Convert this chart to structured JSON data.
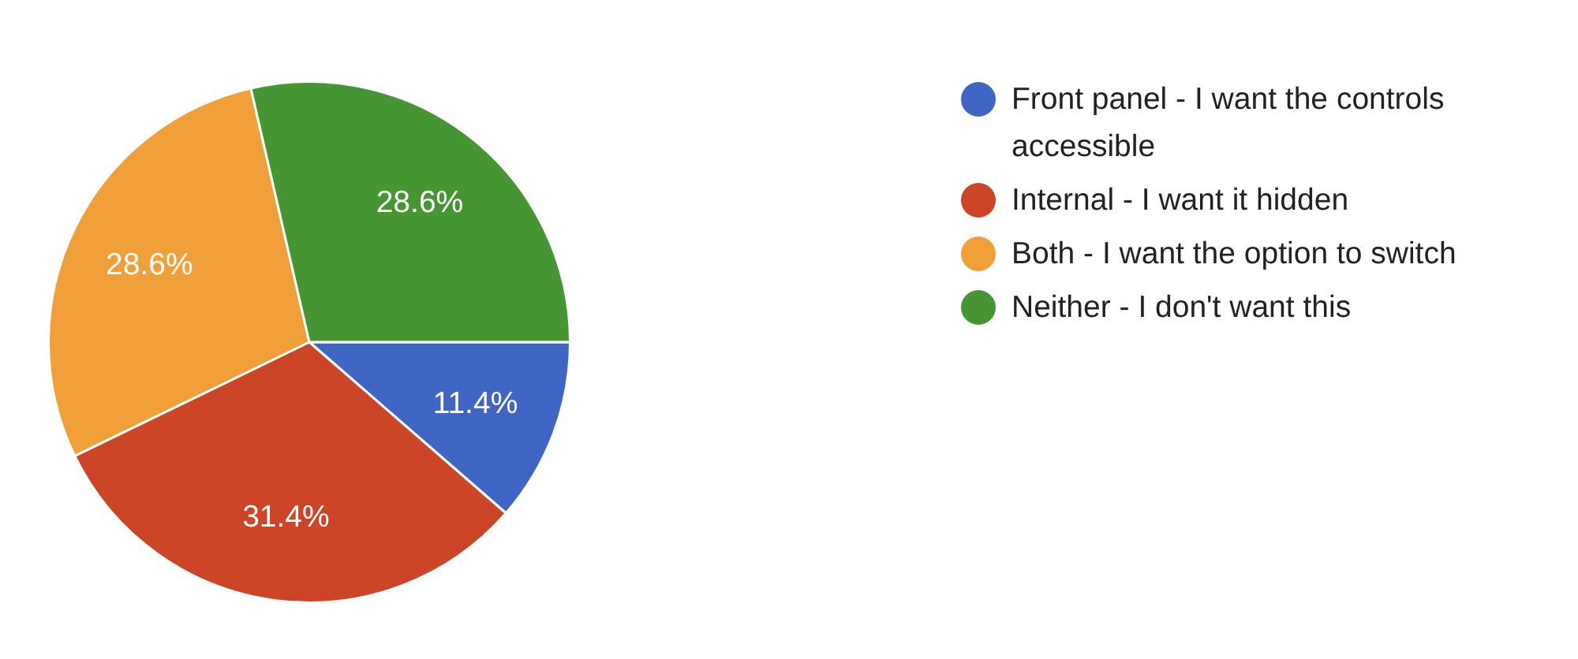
{
  "chart_data": {
    "type": "pie",
    "categories": [
      "Front panel - I want the controls accessible",
      "Internal - I want it hidden",
      "Both - I want the option to switch",
      "Neither - I don't want this"
    ],
    "values": [
      11.4,
      31.4,
      28.6,
      28.6
    ],
    "colors": [
      "#3f65c5",
      "#cc4526",
      "#f19f38",
      "#459632"
    ],
    "value_labels": [
      "11.4%",
      "31.4%",
      "28.6%",
      "28.6%"
    ],
    "legend": "right"
  }
}
